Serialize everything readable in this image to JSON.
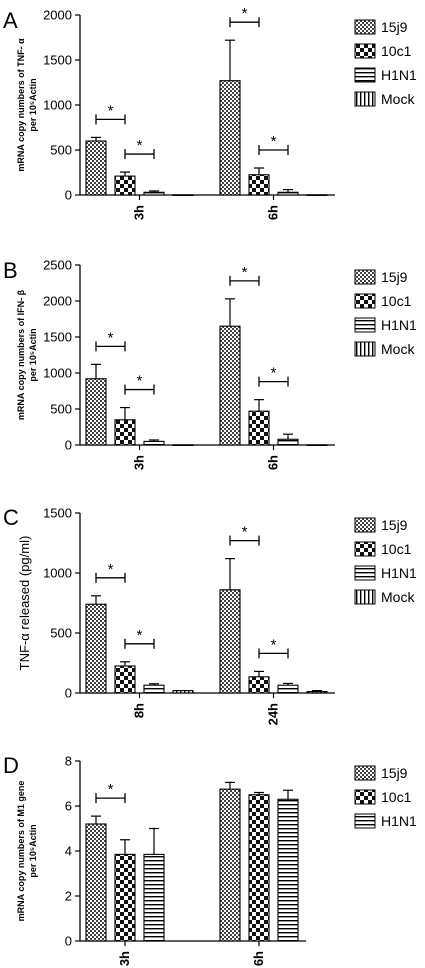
{
  "chart_data": [
    {
      "type": "bar",
      "panel_label": "A",
      "ylabel_lines": [
        "mRNA copy numbers of TNF- α",
        "per 10⁵Actin"
      ],
      "categories": [
        "3h",
        "6h"
      ],
      "ylim": [
        0,
        2000
      ],
      "yticks": [
        "0",
        "500",
        "1000",
        "1500",
        "2000"
      ],
      "series": [
        {
          "name": "15j9",
          "values": [
            600,
            1270
          ],
          "errors": [
            40,
            450
          ]
        },
        {
          "name": "10c1",
          "values": [
            210,
            225
          ],
          "errors": [
            45,
            75
          ]
        },
        {
          "name": "H1N1",
          "values": [
            30,
            30
          ],
          "errors": [
            15,
            30
          ]
        },
        {
          "name": "Mock",
          "values": [
            2,
            2
          ],
          "errors": [
            0,
            0
          ]
        }
      ],
      "significance": [
        {
          "group": 0,
          "bars": [
            0,
            1
          ],
          "label": "*"
        },
        {
          "group": 0,
          "bars": [
            1,
            2
          ],
          "label": "*"
        },
        {
          "group": 1,
          "bars": [
            0,
            1
          ],
          "label": "*"
        },
        {
          "group": 1,
          "bars": [
            1,
            2
          ],
          "label": "*"
        }
      ]
    },
    {
      "type": "bar",
      "panel_label": "B",
      "ylabel_lines": [
        "mRNA copy numbers of IFN- β",
        "per 10⁵Actin"
      ],
      "categories": [
        "3h",
        "6h"
      ],
      "ylim": [
        0,
        2500
      ],
      "yticks": [
        "0",
        "500",
        "1000",
        "1500",
        "2000",
        "2500"
      ],
      "series": [
        {
          "name": "15j9",
          "values": [
            920,
            1650
          ],
          "errors": [
            200,
            380
          ]
        },
        {
          "name": "10c1",
          "values": [
            350,
            470
          ],
          "errors": [
            170,
            160
          ]
        },
        {
          "name": "H1N1",
          "values": [
            50,
            80
          ],
          "errors": [
            20,
            70
          ]
        },
        {
          "name": "Mock",
          "values": [
            2,
            2
          ],
          "errors": [
            0,
            0
          ]
        }
      ],
      "significance": [
        {
          "group": 0,
          "bars": [
            0,
            1
          ],
          "label": "*"
        },
        {
          "group": 0,
          "bars": [
            1,
            2
          ],
          "label": "*"
        },
        {
          "group": 1,
          "bars": [
            0,
            1
          ],
          "label": "*"
        },
        {
          "group": 1,
          "bars": [
            1,
            2
          ],
          "label": "*"
        }
      ]
    },
    {
      "type": "bar",
      "panel_label": "C",
      "ylabel_lines": [
        "TNF-α released (pg/ml)"
      ],
      "categories": [
        "8h",
        "24h"
      ],
      "ylim": [
        0,
        1500
      ],
      "yticks": [
        "0",
        "500",
        "1000",
        "1500"
      ],
      "series": [
        {
          "name": "15j9",
          "values": [
            740,
            860
          ],
          "errors": [
            70,
            260
          ]
        },
        {
          "name": "10c1",
          "values": [
            225,
            135
          ],
          "errors": [
            35,
            45
          ]
        },
        {
          "name": "H1N1",
          "values": [
            65,
            65
          ],
          "errors": [
            12,
            15
          ]
        },
        {
          "name": "Mock",
          "values": [
            20,
            12
          ],
          "errors": [
            0,
            8
          ]
        }
      ],
      "significance": [
        {
          "group": 0,
          "bars": [
            0,
            1
          ],
          "label": "*"
        },
        {
          "group": 0,
          "bars": [
            1,
            2
          ],
          "label": "*"
        },
        {
          "group": 1,
          "bars": [
            0,
            1
          ],
          "label": "*"
        },
        {
          "group": 1,
          "bars": [
            1,
            2
          ],
          "label": "*"
        }
      ]
    },
    {
      "type": "bar",
      "panel_label": "D",
      "ylabel_lines": [
        "mRNA copy numbers of M1 gene",
        "per 10⁵Actin"
      ],
      "categories": [
        "3h",
        "6h"
      ],
      "ylim": [
        0,
        8
      ],
      "yticks": [
        "0",
        "2",
        "4",
        "6",
        "8"
      ],
      "series": [
        {
          "name": "15j9",
          "values": [
            5.2,
            6.75
          ],
          "errors": [
            0.35,
            0.3
          ]
        },
        {
          "name": "10c1",
          "values": [
            3.85,
            6.5
          ],
          "errors": [
            0.65,
            0.1
          ]
        },
        {
          "name": "H1N1",
          "values": [
            3.85,
            6.3
          ],
          "errors": [
            1.15,
            0.4
          ]
        }
      ],
      "significance": [
        {
          "group": 0,
          "bars": [
            0,
            1
          ],
          "label": "*"
        }
      ]
    }
  ]
}
